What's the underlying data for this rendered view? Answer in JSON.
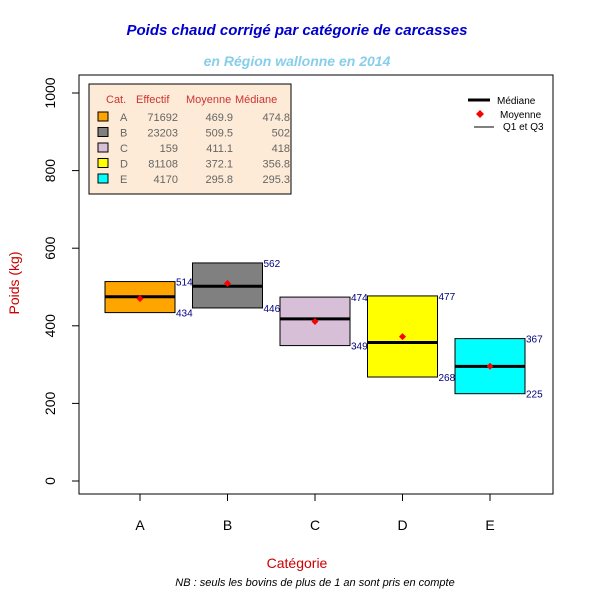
{
  "title": "Poids chaud corrigé par catégorie de carcasses",
  "subtitle": "en Région wallonne en 2014",
  "note": "NB : seuls les bovins de plus de 1 an sont pris en compte",
  "colors": {
    "title": "#0000cc",
    "subtitle": "#87ceeb",
    "axis_label": "#cc0000",
    "value_label": "#000080",
    "mean_marker": "#ff0000",
    "table_bg": "#fdebd7",
    "table_header": "#cc3333"
  },
  "chart_data": {
    "type": "box",
    "xlabel": "Catégorie",
    "ylabel": "Poids (kg)",
    "ylim": [
      0,
      1000
    ],
    "yticks": [
      "0",
      "200",
      "400",
      "600",
      "800",
      "1000"
    ],
    "categories": [
      "A",
      "B",
      "C",
      "D",
      "E"
    ],
    "fill_colors": [
      "#ffa500",
      "#808080",
      "#d8bfd8",
      "#ffff00",
      "#00ffff"
    ],
    "q1": [
      434,
      446,
      349,
      268,
      225
    ],
    "q3": [
      514,
      562,
      474,
      477,
      367
    ],
    "median": [
      474.8,
      502,
      418,
      356.8,
      295.3
    ],
    "mean": [
      469.9,
      509.5,
      411.1,
      372.1,
      295.8
    ],
    "legend": {
      "position": "top-right",
      "items": [
        "Médiane",
        "Moyenne",
        "Q1 et Q3"
      ]
    },
    "table": {
      "position": "top-left",
      "header": [
        "Cat.",
        "Effectif",
        "Moyenne",
        "Médiane"
      ],
      "rows": [
        [
          "A",
          "71692",
          "469.9",
          "474.8"
        ],
        [
          "B",
          "23203",
          "509.5",
          "502"
        ],
        [
          "C",
          "159",
          "411.1",
          "418"
        ],
        [
          "D",
          "81108",
          "372.1",
          "356.8"
        ],
        [
          "E",
          "4170",
          "295.8",
          "295.3"
        ]
      ]
    }
  }
}
